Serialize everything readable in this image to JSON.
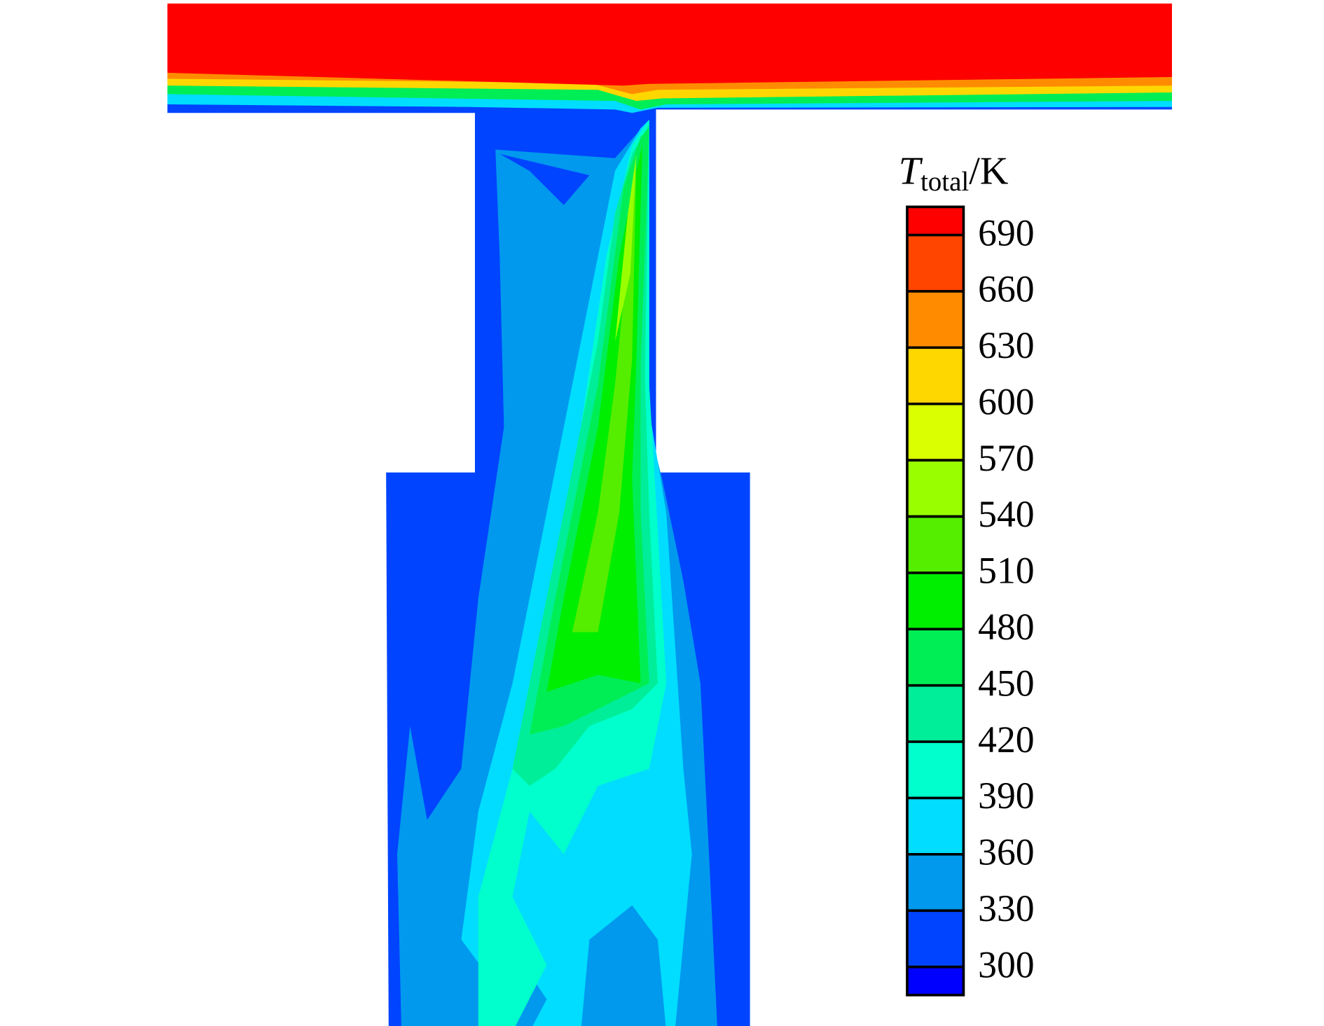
{
  "chart_data": {
    "type": "contour",
    "colorbar_label": {
      "symbol": "T",
      "subscript": "total",
      "unit": "/K"
    },
    "ylim": [
      285,
      705
    ],
    "yticks": [
      300,
      330,
      360,
      390,
      420,
      450,
      480,
      510,
      540,
      570,
      600,
      630,
      660,
      690
    ],
    "colors": [
      "#0000ff",
      "#0044ff",
      "#0099ee",
      "#00ddff",
      "#00ffcc",
      "#00ee99",
      "#00ee55",
      "#00ee00",
      "#55ee00",
      "#99ff00",
      "#d9ff00",
      "#ffd700",
      "#ff8c00",
      "#ff4500",
      "#ff0000"
    ]
  }
}
